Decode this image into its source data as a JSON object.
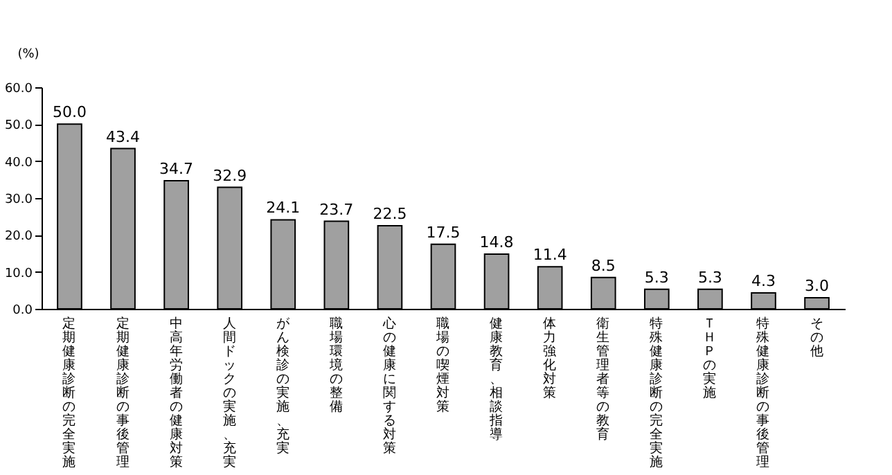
{
  "chart_data": {
    "type": "bar",
    "ylabel": "(%)",
    "categories": [
      "定期健康診断の完全実施",
      "定期健康診断の事後管理",
      "中高年労働者の健康対策",
      "人間ドックの実施、充実",
      "がん検診の実施、充実",
      "職場環境の整備",
      "心の健康に関する対策",
      "職場の喫煙対策",
      "健康教育、相談指導",
      "体力強化対策",
      "衛生管理者等の教育",
      "特殊健康診断の完全実施",
      "ＴＨＰの実施",
      "特殊健康診断の事後管理",
      "その他"
    ],
    "values": [
      50.0,
      43.4,
      34.7,
      32.9,
      24.1,
      23.7,
      22.5,
      17.5,
      14.8,
      11.4,
      8.5,
      5.3,
      5.3,
      4.3,
      3.0
    ],
    "value_labels": [
      "50.0",
      "43.4",
      "34.7",
      "32.9",
      "24.1",
      "23.7",
      "22.5",
      "17.5",
      "14.8",
      "11.4",
      "8.5",
      "5.3",
      "5.3",
      "4.3",
      "3.0"
    ],
    "color": "#a0a0a0",
    "ylim": [
      0,
      60
    ],
    "yticks": [
      {
        "value": 0,
        "label": "0.0"
      },
      {
        "value": 10,
        "label": "10.0"
      },
      {
        "value": 20,
        "label": "20.0"
      },
      {
        "value": 30,
        "label": "30.0"
      },
      {
        "value": 40,
        "label": "40.0"
      },
      {
        "value": 50,
        "label": "50.0"
      },
      {
        "value": 60,
        "label": "60.0"
      }
    ],
    "grid": false
  }
}
